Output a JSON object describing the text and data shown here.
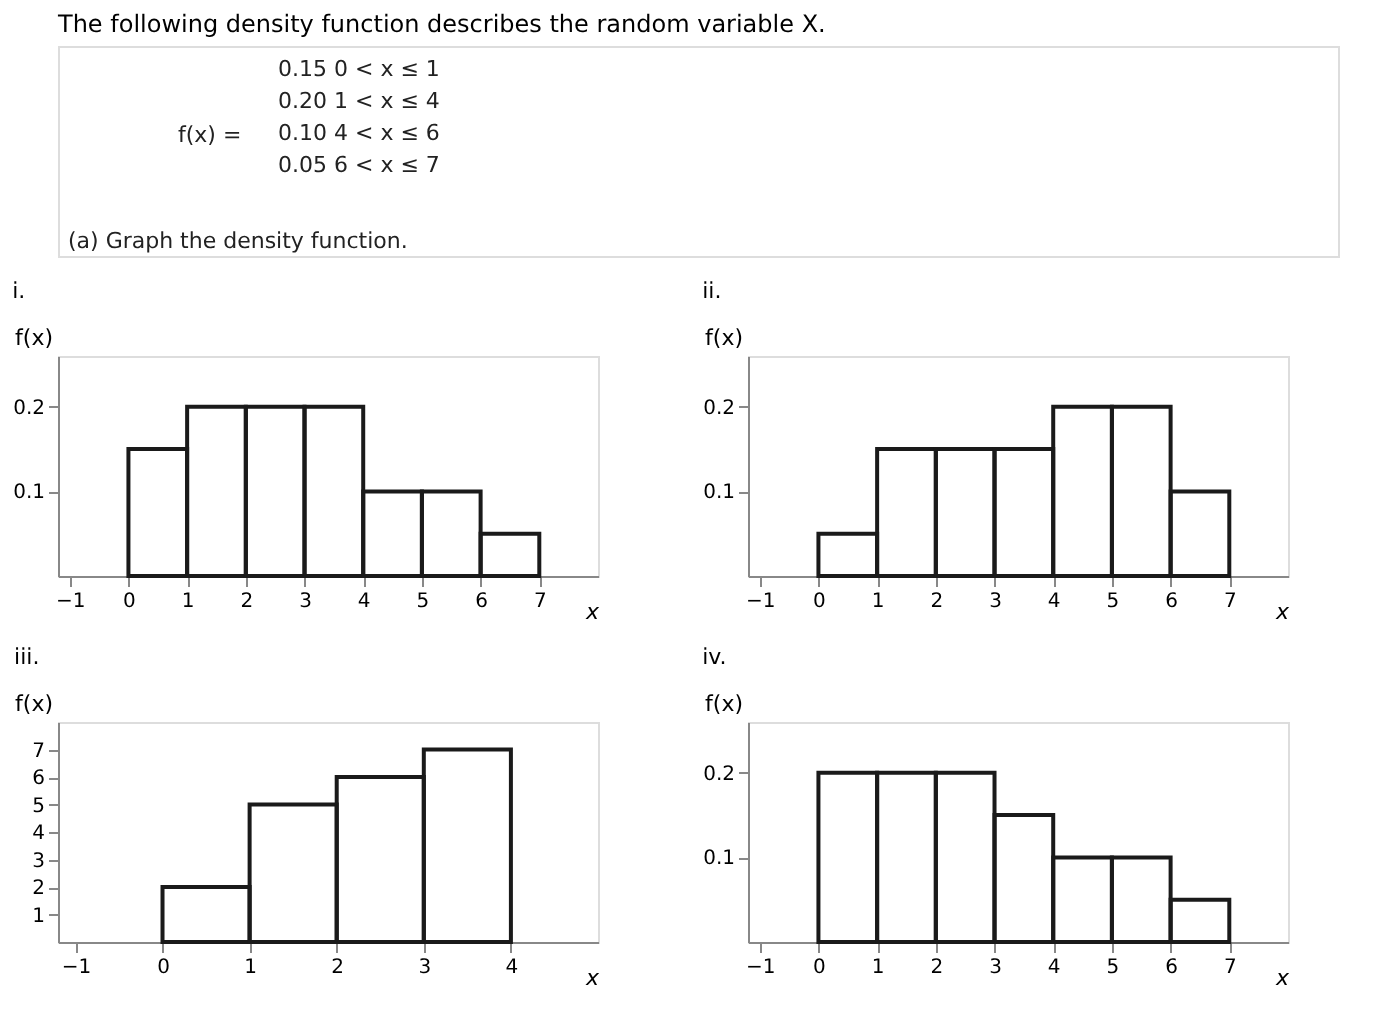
{
  "chart_data": [
    {
      "type": "other",
      "title": "The following density function describes the random variable X.",
      "annotations": [
        "f(x) =",
        "0.15   0 < x ≤ 1",
        "0.20   1 < x ≤ 4",
        "0.10   4 < x ≤ 6",
        "0.05   6 < x ≤ 7",
        "(a)  Graph the density function."
      ]
    },
    {
      "type": "histogram",
      "title": "i.",
      "xlabel": "x",
      "ylabel": "f(x)",
      "bins": [
        0,
        1,
        2,
        3,
        4,
        5,
        6,
        7
      ],
      "values": [
        0.15,
        0.2,
        0.2,
        0.2,
        0.1,
        0.1,
        0.05
      ],
      "color": "#1a1a1a",
      "xlim": [
        -1.2,
        8
      ],
      "ylim": [
        0,
        0.26
      ],
      "xticks": [
        -1,
        0,
        1,
        2,
        3,
        4,
        5,
        6,
        7
      ],
      "yticks": [
        0.1,
        0.2
      ]
    },
    {
      "type": "histogram",
      "title": "ii.",
      "xlabel": "x",
      "ylabel": "f(x)",
      "bins": [
        0,
        1,
        2,
        3,
        4,
        5,
        6,
        7
      ],
      "values": [
        0.05,
        0.15,
        0.15,
        0.15,
        0.2,
        0.2,
        0.1
      ],
      "color": "#1a1a1a",
      "xlim": [
        -1.2,
        8
      ],
      "ylim": [
        0,
        0.26
      ],
      "xticks": [
        -1,
        0,
        1,
        2,
        3,
        4,
        5,
        6,
        7
      ],
      "yticks": [
        0.1,
        0.2
      ]
    },
    {
      "type": "histogram",
      "title": "iii.",
      "xlabel": "x",
      "ylabel": "f(x)",
      "bins": [
        0,
        1,
        2,
        3,
        4
      ],
      "values": [
        2,
        5,
        6,
        7
      ],
      "color": "#1a1a1a",
      "xlim": [
        -1.2,
        5
      ],
      "ylim": [
        0,
        8
      ],
      "xticks": [
        -1,
        0,
        1,
        2,
        3,
        4
      ],
      "yticks": [
        1,
        2,
        3,
        4,
        5,
        6,
        7
      ]
    },
    {
      "type": "histogram",
      "title": "iv.",
      "xlabel": "x",
      "ylabel": "f(x)",
      "bins": [
        0,
        1,
        2,
        3,
        4,
        5,
        6,
        7
      ],
      "values": [
        0.2,
        0.2,
        0.2,
        0.15,
        0.1,
        0.1,
        0.05
      ],
      "color": "#1a1a1a",
      "xlim": [
        -1.2,
        8
      ],
      "ylim": [
        0,
        0.26
      ],
      "xticks": [
        -1,
        0,
        1,
        2,
        3,
        4,
        5,
        6,
        7
      ],
      "yticks": [
        0.1,
        0.2
      ]
    }
  ]
}
